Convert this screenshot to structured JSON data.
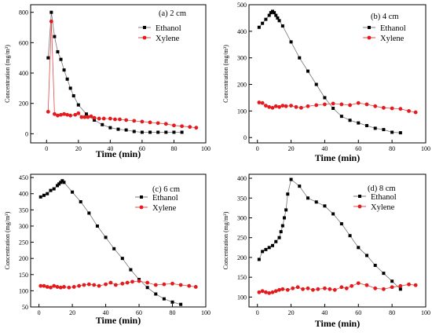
{
  "figure": {
    "colors": {
      "ethanol": "#000000",
      "xylene": "#e41a1c",
      "line": "#555555"
    }
  },
  "chart_data": [
    {
      "type": "line",
      "panel_label": "(a) 2 cm",
      "xlabel": "Time (min)",
      "ylabel": "Concentration (mg/m³)",
      "xlim": [
        -10,
        100
      ],
      "ylim": [
        -60,
        850
      ],
      "xticks": [
        "0",
        "20",
        "40",
        "60",
        "80",
        "100"
      ],
      "yticks": [
        "0",
        "200",
        "400",
        "600",
        "800"
      ],
      "xtick_values": [
        0,
        20,
        40,
        60,
        80,
        100
      ],
      "ytick_values": [
        0,
        200,
        400,
        600,
        800
      ],
      "legend_position": "top-right",
      "series": [
        {
          "name": "Ethanol",
          "marker": "square",
          "x": [
            1,
            3,
            5,
            7,
            9,
            11,
            13,
            15,
            17,
            20,
            25,
            30,
            35,
            40,
            45,
            50,
            55,
            60,
            65,
            70,
            75,
            80,
            85
          ],
          "y": [
            500,
            800,
            640,
            540,
            490,
            420,
            360,
            300,
            250,
            190,
            130,
            90,
            60,
            40,
            30,
            25,
            15,
            10,
            10,
            10,
            10,
            10,
            10
          ]
        },
        {
          "name": "Xylene",
          "marker": "circle",
          "x": [
            1,
            3,
            5,
            7,
            9,
            11,
            13,
            15,
            18,
            20,
            22,
            24,
            26,
            28,
            30,
            33,
            36,
            40,
            43,
            46,
            50,
            55,
            60,
            65,
            70,
            75,
            80,
            85,
            90,
            94
          ],
          "y": [
            145,
            740,
            130,
            120,
            125,
            130,
            125,
            120,
            125,
            135,
            110,
            110,
            110,
            115,
            105,
            100,
            100,
            100,
            95,
            95,
            90,
            85,
            80,
            75,
            70,
            65,
            55,
            50,
            45,
            40
          ]
        }
      ]
    },
    {
      "type": "line",
      "panel_label": "(b) 4 cm",
      "xlabel": "Time (min)",
      "ylabel": "Concentration (mg/m³)",
      "xlim": [
        -5,
        100
      ],
      "ylim": [
        -20,
        500
      ],
      "xticks": [
        "0",
        "20",
        "40",
        "60",
        "80",
        "100"
      ],
      "yticks": [
        "0",
        "100",
        "200",
        "300",
        "400",
        "500"
      ],
      "xtick_values": [
        0,
        20,
        40,
        60,
        80,
        100
      ],
      "ytick_values": [
        0,
        100,
        200,
        300,
        400,
        500
      ],
      "legend_position": "top-right",
      "series": [
        {
          "name": "Ethanol",
          "marker": "square",
          "x": [
            1,
            3,
            5,
            7,
            8,
            9,
            10,
            11,
            12,
            13,
            15,
            20,
            25,
            30,
            35,
            40,
            45,
            50,
            55,
            60,
            65,
            70,
            75,
            80,
            85
          ],
          "y": [
            415,
            430,
            445,
            460,
            470,
            475,
            470,
            460,
            450,
            440,
            420,
            360,
            300,
            250,
            200,
            150,
            110,
            80,
            65,
            55,
            45,
            35,
            30,
            20,
            18
          ]
        },
        {
          "name": "Xylene",
          "marker": "circle",
          "x": [
            1,
            3,
            5,
            7,
            9,
            11,
            13,
            15,
            17,
            20,
            23,
            26,
            30,
            35,
            40,
            45,
            50,
            55,
            60,
            65,
            70,
            75,
            80,
            85,
            90,
            94
          ],
          "y": [
            132,
            130,
            120,
            115,
            112,
            118,
            115,
            120,
            118,
            120,
            115,
            112,
            118,
            122,
            125,
            128,
            125,
            122,
            130,
            125,
            118,
            112,
            110,
            108,
            100,
            95
          ]
        }
      ]
    },
    {
      "type": "line",
      "panel_label": "(c) 6 cm",
      "xlabel": "Time (min)",
      "ylabel": "Concentration (mg/m³)",
      "xlim": [
        -5,
        100
      ],
      "ylim": [
        50,
        460
      ],
      "xticks": [
        "0",
        "20",
        "40",
        "60",
        "80",
        "100"
      ],
      "yticks": [
        "50",
        "100",
        "150",
        "200",
        "250",
        "300",
        "350",
        "400",
        "450"
      ],
      "xtick_values": [
        0,
        20,
        40,
        60,
        80,
        100
      ],
      "ytick_values": [
        50,
        100,
        150,
        200,
        250,
        300,
        350,
        400,
        450
      ],
      "legend_position": "top-right",
      "series": [
        {
          "name": "Ethanol",
          "marker": "square",
          "x": [
            1,
            3,
            5,
            7,
            9,
            11,
            12,
            13,
            14,
            15,
            20,
            25,
            30,
            35,
            40,
            45,
            50,
            55,
            60,
            65,
            70,
            75,
            80,
            85
          ],
          "y": [
            390,
            395,
            400,
            410,
            415,
            425,
            430,
            435,
            440,
            435,
            405,
            375,
            340,
            300,
            265,
            230,
            200,
            165,
            135,
            110,
            90,
            75,
            65,
            58
          ]
        },
        {
          "name": "Xylene",
          "marker": "circle",
          "x": [
            1,
            3,
            5,
            7,
            9,
            11,
            13,
            15,
            18,
            21,
            24,
            27,
            30,
            33,
            36,
            40,
            43,
            46,
            50,
            53,
            56,
            60,
            65,
            70,
            75,
            80,
            85,
            90,
            94
          ],
          "y": [
            115,
            115,
            112,
            110,
            115,
            112,
            110,
            112,
            110,
            112,
            115,
            118,
            120,
            118,
            115,
            120,
            125,
            118,
            122,
            125,
            128,
            130,
            125,
            118,
            120,
            122,
            118,
            115,
            112
          ]
        }
      ]
    },
    {
      "type": "line",
      "panel_label": "(d) 8 cm",
      "xlabel": "Time (min)",
      "ylabel": "Concentration (mg/m³)",
      "xlim": [
        -5,
        100
      ],
      "ylim": [
        75,
        410
      ],
      "xticks": [
        "0",
        "20",
        "40",
        "60",
        "80",
        "100"
      ],
      "yticks": [
        "100",
        "150",
        "200",
        "250",
        "300",
        "350",
        "400"
      ],
      "xtick_values": [
        0,
        20,
        40,
        60,
        80,
        100
      ],
      "ytick_values": [
        100,
        150,
        200,
        250,
        300,
        350,
        400
      ],
      "legend_position": "top-right",
      "series": [
        {
          "name": "Ethanol",
          "marker": "square",
          "x": [
            1,
            3,
            5,
            7,
            9,
            11,
            13,
            14,
            15,
            16,
            17,
            18,
            20,
            25,
            30,
            35,
            40,
            45,
            50,
            55,
            60,
            65,
            70,
            75,
            80,
            85
          ],
          "y": [
            195,
            215,
            220,
            225,
            230,
            240,
            250,
            265,
            280,
            300,
            320,
            360,
            397,
            380,
            350,
            340,
            330,
            310,
            285,
            255,
            225,
            205,
            180,
            160,
            140,
            120
          ]
        },
        {
          "name": "Xylene",
          "marker": "circle",
          "x": [
            1,
            3,
            5,
            7,
            9,
            11,
            13,
            15,
            18,
            21,
            24,
            27,
            30,
            33,
            36,
            40,
            43,
            46,
            50,
            53,
            56,
            60,
            65,
            70,
            75,
            80,
            85,
            90,
            94
          ],
          "y": [
            112,
            115,
            112,
            110,
            112,
            115,
            118,
            120,
            118,
            122,
            125,
            120,
            122,
            118,
            120,
            122,
            120,
            118,
            125,
            122,
            128,
            135,
            130,
            122,
            120,
            125,
            128,
            132,
            130
          ]
        }
      ]
    }
  ]
}
